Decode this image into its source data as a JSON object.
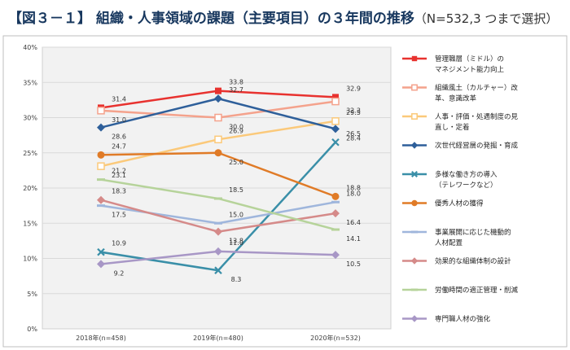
{
  "header": {
    "title": "【図３－１】 組織・人事領域の課題（主要項目）の３年間の推移",
    "note": "（N=532,3 つまで選択）"
  },
  "chart_data": {
    "type": "line",
    "ylim": [
      0,
      40
    ],
    "yticks": [
      "0%",
      "5%",
      "10%",
      "15%",
      "20%",
      "25%",
      "30%",
      "35%",
      "40%"
    ],
    "grid": true,
    "legend_position": "right",
    "categories": [
      "2018年(n=458)",
      "2019年(n=480)",
      "2020年(n=532)"
    ],
    "series": [
      {
        "name_lines": [
          "管理職層（ミドル）の",
          "マネジメント能力向上"
        ],
        "values": [
          31.4,
          33.8,
          32.9
        ],
        "labels": [
          "31.4",
          "33.8",
          "32.9"
        ],
        "color": "#e8322f",
        "marker": "square"
      },
      {
        "name_lines": [
          "組織風土（カルチャー）改",
          "革、意識改革"
        ],
        "values": [
          31.0,
          30.0,
          32.3
        ],
        "labels": [
          "31.0",
          "30.0",
          "32.3"
        ],
        "color": "#f4a28c",
        "marker": "square-open"
      },
      {
        "name_lines": [
          "人事・評価・処遇制度の見",
          "直し・定着"
        ],
        "values": [
          23.1,
          26.9,
          29.5
        ],
        "labels": [
          "23.1",
          "26.9",
          "29.5"
        ],
        "color": "#fbc97a",
        "marker": "square-open"
      },
      {
        "name_lines": [
          "次世代経営層の発掘・育成"
        ],
        "values": [
          28.6,
          32.7,
          28.4
        ],
        "labels": [
          "28.6",
          "32.7",
          "28.4"
        ],
        "color": "#2e5f9a",
        "marker": "diamond"
      },
      {
        "name_lines": [
          "多様な働き方の導入",
          "（テレワークなど）"
        ],
        "values": [
          10.9,
          8.3,
          26.5
        ],
        "labels": [
          "10.9",
          "8.3",
          "26.5"
        ],
        "color": "#3a8fa8",
        "marker": "x"
      },
      {
        "name_lines": [
          "優秀人材の獲得"
        ],
        "values": [
          24.7,
          25.0,
          18.8
        ],
        "labels": [
          "24.7",
          "25.0",
          "18.8"
        ],
        "color": "#e07b27",
        "marker": "circle"
      },
      {
        "name_lines": [
          "事業展開に応じた機動的",
          "人材配置"
        ],
        "values": [
          17.5,
          15.0,
          18.0
        ],
        "labels": [
          "17.5",
          "15.0",
          "18.0"
        ],
        "color": "#9fb6dc",
        "marker": "dash"
      },
      {
        "name_lines": [
          "効果的な組織体制の設計"
        ],
        "values": [
          18.3,
          13.8,
          16.4
        ],
        "labels": [
          "18.3",
          "13.8",
          "16.4"
        ],
        "color": "#d58a89",
        "marker": "diamond"
      },
      {
        "name_lines": [
          "労働時間の適正管理・削減"
        ],
        "values": [
          21.2,
          18.5,
          14.1
        ],
        "labels": [
          "21.2",
          "18.5",
          "14.1"
        ],
        "color": "#b6d39a",
        "marker": "dash"
      },
      {
        "name_lines": [
          "専門職人材の強化"
        ],
        "values": [
          9.2,
          11.0,
          10.5
        ],
        "labels": [
          "9.2",
          "11.0",
          "10.5"
        ],
        "color": "#a897c6",
        "marker": "diamond"
      }
    ]
  }
}
